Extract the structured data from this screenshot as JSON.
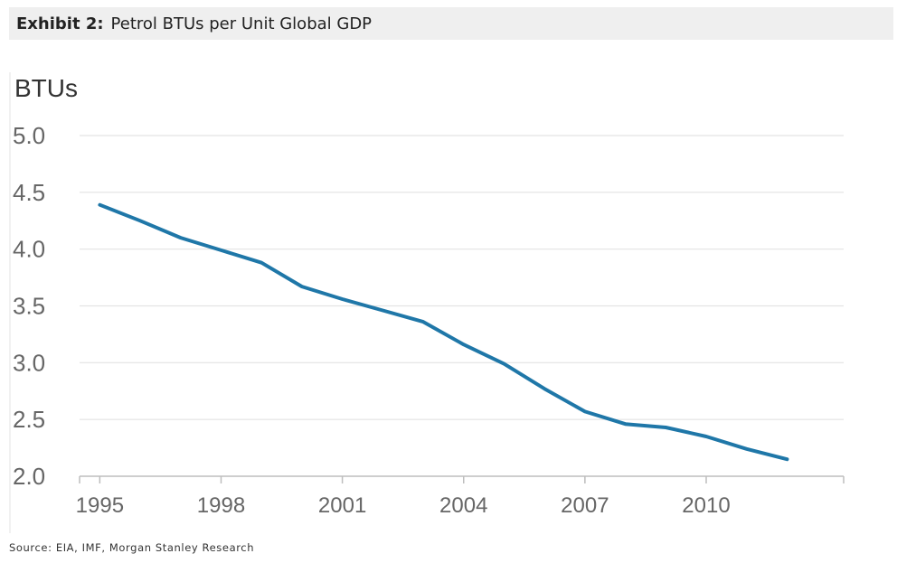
{
  "header": {
    "exhibit_label": "Exhibit 2:",
    "title": "Petrol BTUs per Unit Global GDP"
  },
  "source": "Source: EIA, IMF, Morgan Stanley Research",
  "colors": {
    "line": "#1f77a8",
    "grid": "#e3e3e3",
    "axis": "#bdbdbd",
    "header_bg": "#efefef"
  },
  "chart_data": {
    "type": "line",
    "title": "Petrol BTUs per Unit Global GDP",
    "ylabel": "BTUs",
    "xlabel": "",
    "ylim": [
      2.0,
      5.0
    ],
    "yticks": [
      2.0,
      2.5,
      3.0,
      3.5,
      4.0,
      4.5,
      5.0
    ],
    "ytick_labels": [
      "2.0",
      "2.5",
      "3.0",
      "3.5",
      "4.0",
      "4.5",
      "5.0"
    ],
    "xlim": [
      1994.5,
      2013.4
    ],
    "xticks": [
      1995,
      1998,
      2001,
      2004,
      2007,
      2010
    ],
    "xtick_labels": [
      "1995",
      "1998",
      "2001",
      "2004",
      "2007",
      "2010"
    ],
    "grid": true,
    "series": [
      {
        "name": "BTUs",
        "x": [
          1995,
          1996,
          1997,
          1998,
          1999,
          2000,
          2001,
          2002,
          2003,
          2004,
          2005,
          2006,
          2007,
          2008,
          2009,
          2010,
          2011,
          2012
        ],
        "values": [
          4.39,
          4.25,
          4.1,
          3.99,
          3.88,
          3.67,
          3.56,
          3.46,
          3.36,
          3.16,
          2.99,
          2.77,
          2.57,
          2.46,
          2.43,
          2.35,
          2.24,
          2.15
        ]
      }
    ]
  }
}
